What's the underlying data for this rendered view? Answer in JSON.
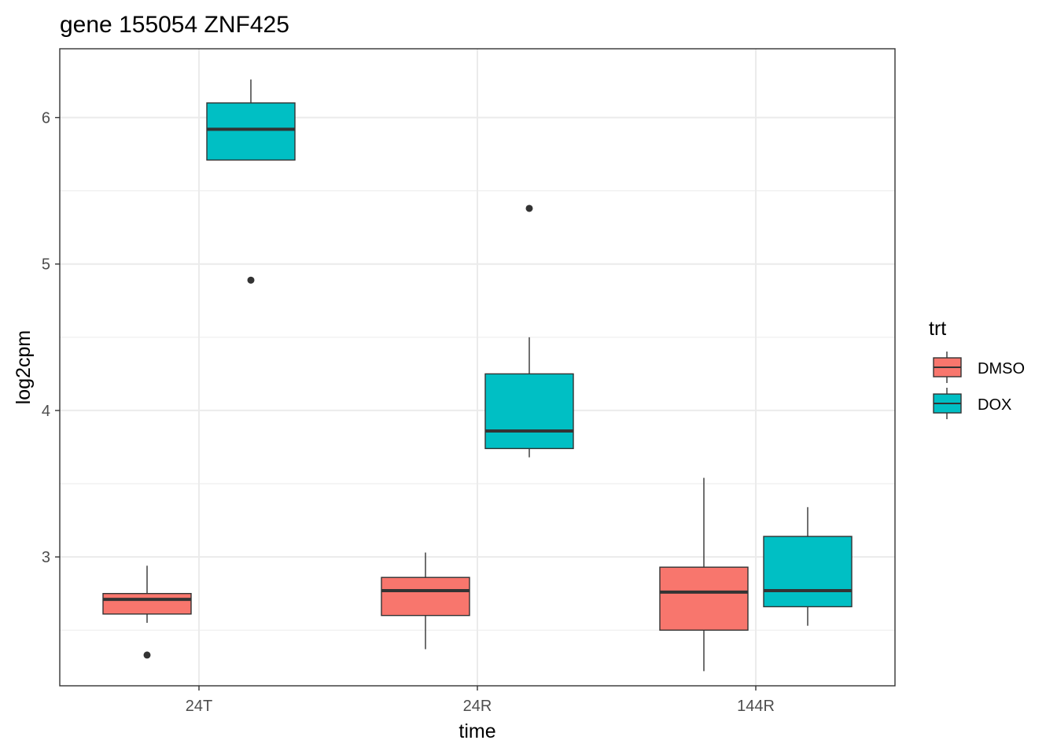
{
  "chart_data": {
    "type": "boxplot",
    "title": "gene 155054 ZNF425",
    "xlabel": "time",
    "ylabel": "log2cpm",
    "categories": [
      "24T",
      "24R",
      "144R"
    ],
    "y_ticks": [
      3,
      4,
      5,
      6
    ],
    "ylim": [
      2.12,
      6.47
    ],
    "legend": {
      "title": "trt",
      "position": "right",
      "entries": [
        {
          "name": "DMSO",
          "color": "#F8766D"
        },
        {
          "name": "DOX",
          "color": "#00BFC4"
        }
      ]
    },
    "series": [
      {
        "name": "DMSO",
        "color": "#F8766D",
        "boxes": [
          {
            "category": "24T",
            "whisker_low": 2.55,
            "q1": 2.61,
            "median": 2.71,
            "q3": 2.75,
            "whisker_high": 2.94,
            "outliers": [
              2.33
            ]
          },
          {
            "category": "24R",
            "whisker_low": 2.37,
            "q1": 2.6,
            "median": 2.77,
            "q3": 2.86,
            "whisker_high": 3.03,
            "outliers": []
          },
          {
            "category": "144R",
            "whisker_low": 2.22,
            "q1": 2.5,
            "median": 2.76,
            "q3": 2.93,
            "whisker_high": 3.54,
            "outliers": []
          }
        ]
      },
      {
        "name": "DOX",
        "color": "#00BFC4",
        "boxes": [
          {
            "category": "24T",
            "whisker_low": 5.71,
            "q1": 5.71,
            "median": 5.92,
            "q3": 6.1,
            "whisker_high": 6.26,
            "outliers": [
              4.89
            ]
          },
          {
            "category": "24R",
            "whisker_low": 3.68,
            "q1": 3.74,
            "median": 3.86,
            "q3": 4.25,
            "whisker_high": 4.5,
            "outliers": [
              5.38
            ]
          },
          {
            "category": "144R",
            "whisker_low": 2.53,
            "q1": 2.66,
            "median": 2.77,
            "q3": 3.14,
            "whisker_high": 3.34,
            "outliers": []
          }
        ]
      }
    ]
  }
}
